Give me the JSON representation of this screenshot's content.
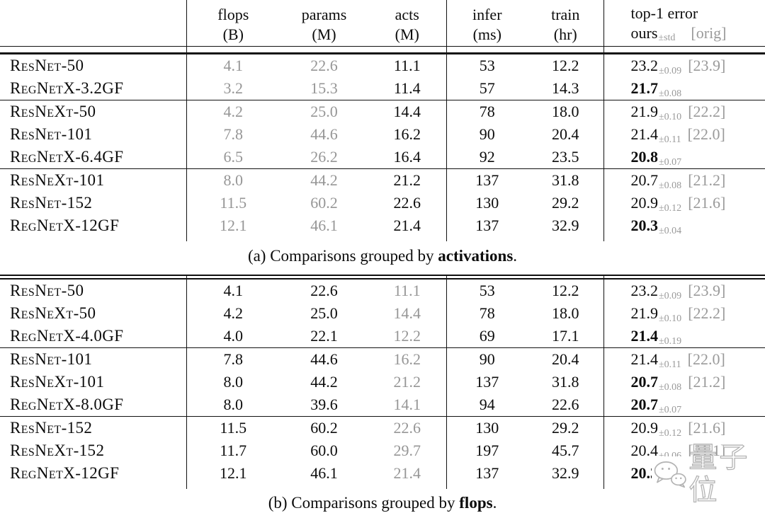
{
  "header": {
    "cols": [
      {
        "key": "flops",
        "label": "flops",
        "unit": "(B)"
      },
      {
        "key": "params",
        "label": "params",
        "unit": "(M)"
      },
      {
        "key": "acts",
        "label": "acts",
        "unit": "(M)"
      },
      {
        "key": "infer",
        "label": "infer",
        "unit": "(ms)"
      },
      {
        "key": "train",
        "label": "train",
        "unit": "(hr)"
      }
    ],
    "top1": {
      "title": "top-1 error",
      "ours": "ours",
      "std": "±std",
      "orig": "[orig]"
    }
  },
  "colors": {
    "text": "#0c0c0c",
    "muted_gray": "#969696",
    "watermark_gray": "#b3b3b3"
  },
  "tables": [
    {
      "id": "a",
      "gray_columns": [
        "flops",
        "params"
      ],
      "caption": {
        "prefix": "(a) Comparisons grouped by ",
        "bold": "activations",
        "suffix": "."
      },
      "groups": [
        [
          {
            "model": "ResNet-50",
            "flops": "4.1",
            "params": "22.6",
            "acts": "11.1",
            "infer": "53",
            "train": "12.2",
            "err": {
              "main": "23.2",
              "std": "±0.09",
              "orig": "[23.9]",
              "bold": false
            }
          },
          {
            "model": "RegNetX-3.2GF",
            "flops": "3.2",
            "params": "15.3",
            "acts": "11.4",
            "infer": "57",
            "train": "14.3",
            "err": {
              "main": "21.7",
              "std": "±0.08",
              "orig": "",
              "bold": true
            }
          }
        ],
        [
          {
            "model": "ResNeXt-50",
            "flops": "4.2",
            "params": "25.0",
            "acts": "14.4",
            "infer": "78",
            "train": "18.0",
            "err": {
              "main": "21.9",
              "std": "±0.10",
              "orig": "[22.2]",
              "bold": false
            }
          },
          {
            "model": "ResNet-101",
            "flops": "7.8",
            "params": "44.6",
            "acts": "16.2",
            "infer": "90",
            "train": "20.4",
            "err": {
              "main": "21.4",
              "std": "±0.11",
              "orig": "[22.0]",
              "bold": false
            }
          },
          {
            "model": "RegNetX-6.4GF",
            "flops": "6.5",
            "params": "26.2",
            "acts": "16.4",
            "infer": "92",
            "train": "23.5",
            "err": {
              "main": "20.8",
              "std": "±0.07",
              "orig": "",
              "bold": true
            }
          }
        ],
        [
          {
            "model": "ResNeXt-101",
            "flops": "8.0",
            "params": "44.2",
            "acts": "21.2",
            "infer": "137",
            "train": "31.8",
            "err": {
              "main": "20.7",
              "std": "±0.08",
              "orig": "[21.2]",
              "bold": false
            }
          },
          {
            "model": "ResNet-152",
            "flops": "11.5",
            "params": "60.2",
            "acts": "22.6",
            "infer": "130",
            "train": "29.2",
            "err": {
              "main": "20.9",
              "std": "±0.12",
              "orig": "[21.6]",
              "bold": false
            }
          },
          {
            "model": "RegNetX-12GF",
            "flops": "12.1",
            "params": "46.1",
            "acts": "21.4",
            "infer": "137",
            "train": "32.9",
            "err": {
              "main": "20.3",
              "std": "±0.04",
              "orig": "",
              "bold": true
            }
          }
        ]
      ]
    },
    {
      "id": "b",
      "gray_columns": [
        "acts"
      ],
      "caption": {
        "prefix": "(b) Comparisons grouped by ",
        "bold": "flops",
        "suffix": "."
      },
      "groups": [
        [
          {
            "model": "ResNet-50",
            "flops": "4.1",
            "params": "22.6",
            "acts": "11.1",
            "infer": "53",
            "train": "12.2",
            "err": {
              "main": "23.2",
              "std": "±0.09",
              "orig": "[23.9]",
              "bold": false
            }
          },
          {
            "model": "ResNeXt-50",
            "flops": "4.2",
            "params": "25.0",
            "acts": "14.4",
            "infer": "78",
            "train": "18.0",
            "err": {
              "main": "21.9",
              "std": "±0.10",
              "orig": "[22.2]",
              "bold": false
            }
          },
          {
            "model": "RegNetX-4.0GF",
            "flops": "4.0",
            "params": "22.1",
            "acts": "12.2",
            "infer": "69",
            "train": "17.1",
            "err": {
              "main": "21.4",
              "std": "±0.19",
              "orig": "",
              "bold": true
            }
          }
        ],
        [
          {
            "model": "ResNet-101",
            "flops": "7.8",
            "params": "44.6",
            "acts": "16.2",
            "infer": "90",
            "train": "20.4",
            "err": {
              "main": "21.4",
              "std": "±0.11",
              "orig": "[22.0]",
              "bold": false
            }
          },
          {
            "model": "ResNeXt-101",
            "flops": "8.0",
            "params": "44.2",
            "acts": "21.2",
            "infer": "137",
            "train": "31.8",
            "err": {
              "main": "20.7",
              "std": "±0.08",
              "orig": "[21.2]",
              "bold": true
            }
          },
          {
            "model": "RegNetX-8.0GF",
            "flops": "8.0",
            "params": "39.6",
            "acts": "14.1",
            "infer": "94",
            "train": "22.6",
            "err": {
              "main": "20.7",
              "std": "±0.07",
              "orig": "",
              "bold": true
            }
          }
        ],
        [
          {
            "model": "ResNet-152",
            "flops": "11.5",
            "params": "60.2",
            "acts": "22.6",
            "infer": "130",
            "train": "29.2",
            "err": {
              "main": "20.9",
              "std": "±0.12",
              "orig": "[21.6]",
              "bold": false
            }
          },
          {
            "model": "ResNeXt-152",
            "flops": "11.7",
            "params": "60.0",
            "acts": "29.7",
            "infer": "197",
            "train": "45.7",
            "err": {
              "main": "20.4",
              "std": "±0.06",
              "orig": "[21.1]",
              "bold": false
            }
          },
          {
            "model": "RegNetX-12GF",
            "flops": "12.1",
            "params": "46.1",
            "acts": "21.4",
            "infer": "137",
            "train": "32.9",
            "err": {
              "main": "20.3",
              "std": "±0.04",
              "orig": "",
              "bold": true,
              "obscured_by_watermark": true
            }
          }
        ]
      ]
    }
  ],
  "watermark": {
    "text": "量子位",
    "icon": "wechat-chat-bubbles-icon"
  }
}
